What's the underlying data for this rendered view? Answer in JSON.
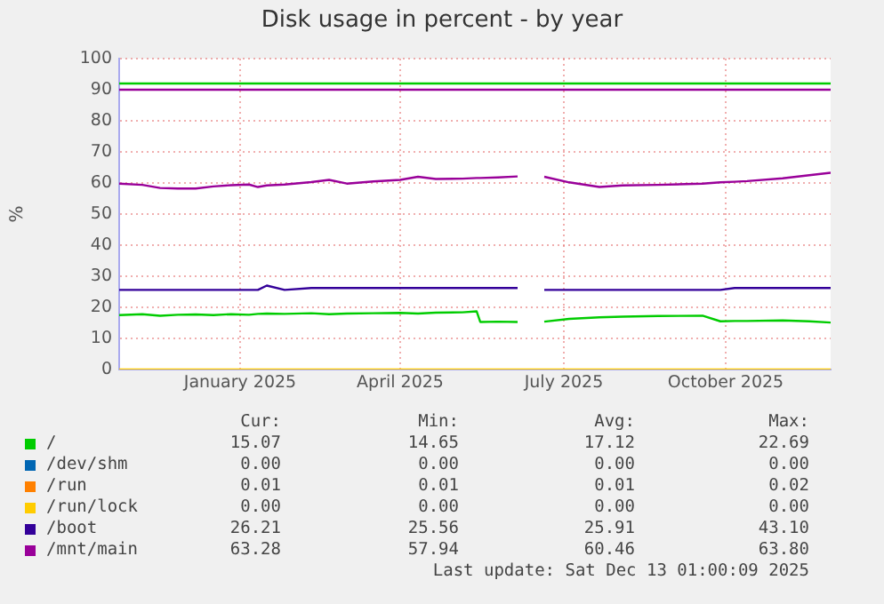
{
  "chart_data": {
    "type": "line",
    "title": "Disk usage in percent - by year",
    "ylabel": "%",
    "x": [
      "2024-11-08",
      "2024-11-21",
      "2024-12-01",
      "2024-12-11",
      "2024-12-21",
      "2024-12-31",
      "2025-01-10",
      "2025-01-20",
      "2025-01-25",
      "2025-01-30",
      "2025-02-09",
      "2025-02-24",
      "2025-03-06",
      "2025-03-16",
      "2025-03-31",
      "2025-04-15",
      "2025-04-25",
      "2025-05-05",
      "2025-05-20",
      "2025-05-28",
      "2025-05-30",
      "2025-06-09",
      "2025-06-20",
      "2025-06-27",
      "2025-07-05",
      "2025-07-19",
      "2025-08-05",
      "2025-08-18",
      "2025-09-07",
      "2025-10-02",
      "2025-10-12",
      "2025-10-20",
      "2025-10-27",
      "2025-11-16",
      "2025-12-01",
      "2025-12-13"
    ],
    "series": [
      {
        "name": "/",
        "color": "#00cc00",
        "values": [
          17.5,
          17.8,
          17.3,
          17.6,
          17.7,
          17.5,
          17.8,
          17.6,
          17.9,
          18,
          17.9,
          18.1,
          17.8,
          18,
          18.1,
          18.2,
          18.0,
          18.3,
          18.4,
          18.7,
          15.3,
          15.4,
          15.3,
          null,
          15.4,
          16.3,
          16.8,
          17,
          17.2,
          17.3,
          15.5,
          15.6,
          15.6,
          15.8,
          15.5,
          15.1
        ]
      },
      {
        "name": "/dev/shm",
        "color": "#0066b3",
        "values": [
          null,
          null,
          null,
          null,
          null,
          null,
          null,
          null,
          null,
          null,
          null,
          null,
          null,
          null,
          null,
          null,
          null,
          null,
          null,
          null,
          null,
          null,
          null,
          null,
          null,
          null,
          null,
          null,
          null,
          null,
          null,
          null,
          null,
          null,
          null,
          null
        ]
      },
      {
        "name": "/run",
        "color": "#ff8000",
        "values": [
          null,
          null,
          null,
          null,
          null,
          null,
          null,
          null,
          null,
          null,
          null,
          null,
          null,
          null,
          null,
          null,
          null,
          null,
          null,
          null,
          null,
          null,
          null,
          null,
          null,
          null,
          null,
          null,
          null,
          null,
          null,
          null,
          null,
          null,
          null,
          null
        ]
      },
      {
        "name": "/run/lock",
        "color": "#ffcc00",
        "x": [
          "2024-11-08",
          "2025-12-13"
        ],
        "values": [
          0,
          0
        ]
      },
      {
        "name": "/boot",
        "color": "#330099",
        "values": [
          25.6,
          25.6,
          25.6,
          25.6,
          25.6,
          25.6,
          25.6,
          25.6,
          25.6,
          27,
          25.6,
          26.2,
          26.2,
          26.2,
          26.2,
          26.2,
          26.2,
          26.2,
          26.2,
          26.2,
          26.2,
          26.2,
          26.2,
          null,
          25.6,
          25.6,
          25.6,
          25.6,
          25.6,
          25.6,
          25.6,
          26.2,
          26.2,
          26.2,
          26.2,
          26.2
        ]
      },
      {
        "name": "/mnt/main",
        "color": "#990099",
        "values": [
          59.8,
          59.4,
          58.4,
          58.2,
          58.2,
          58.9,
          59.3,
          59.5,
          58.7,
          59.2,
          59.5,
          60.3,
          61,
          59.8,
          60.5,
          61,
          62,
          61.3,
          61.4,
          61.6,
          61.6,
          61.8,
          62.1,
          null,
          62,
          60.2,
          58.7,
          59.2,
          59.4,
          59.8,
          60.2,
          60.4,
          60.6,
          61.5,
          62.5,
          63.3
        ]
      }
    ],
    "xlim": [
      "2024-11-08",
      "2025-12-13"
    ],
    "xticks": [
      {
        "value": "2025-01-15",
        "label": "January 2025"
      },
      {
        "value": "2025-04-15",
        "label": "April 2025"
      },
      {
        "value": "2025-07-16",
        "label": "July 2025"
      },
      {
        "value": "2025-10-15",
        "label": "October 2025"
      }
    ],
    "ylim": [
      0,
      100
    ],
    "yticks": [
      0,
      10,
      20,
      30,
      40,
      50,
      60,
      70,
      80,
      90,
      100
    ],
    "ref_lines": [
      {
        "axis": "y",
        "value": 92,
        "color": "#00cc00"
      },
      {
        "axis": "y",
        "value": 90,
        "color": "#990099"
      }
    ],
    "grid": true,
    "legend": "bottom",
    "annotations": [
      "Cur:",
      "Min:",
      "Avg:",
      "Max:",
      "15.07",
      "14.65",
      "17.12",
      "22.69",
      "0.00",
      "0.00",
      "0.00",
      "0.00",
      "0.01",
      "0.01",
      "0.01",
      "0.02",
      "0.00",
      "0.00",
      "0.00",
      "0.00",
      "26.21",
      "25.56",
      "25.91",
      "43.10",
      "63.28",
      "57.94",
      "60.46",
      "63.80",
      "Last update: Sat Dec 13 01:00:09 2025"
    ]
  }
}
